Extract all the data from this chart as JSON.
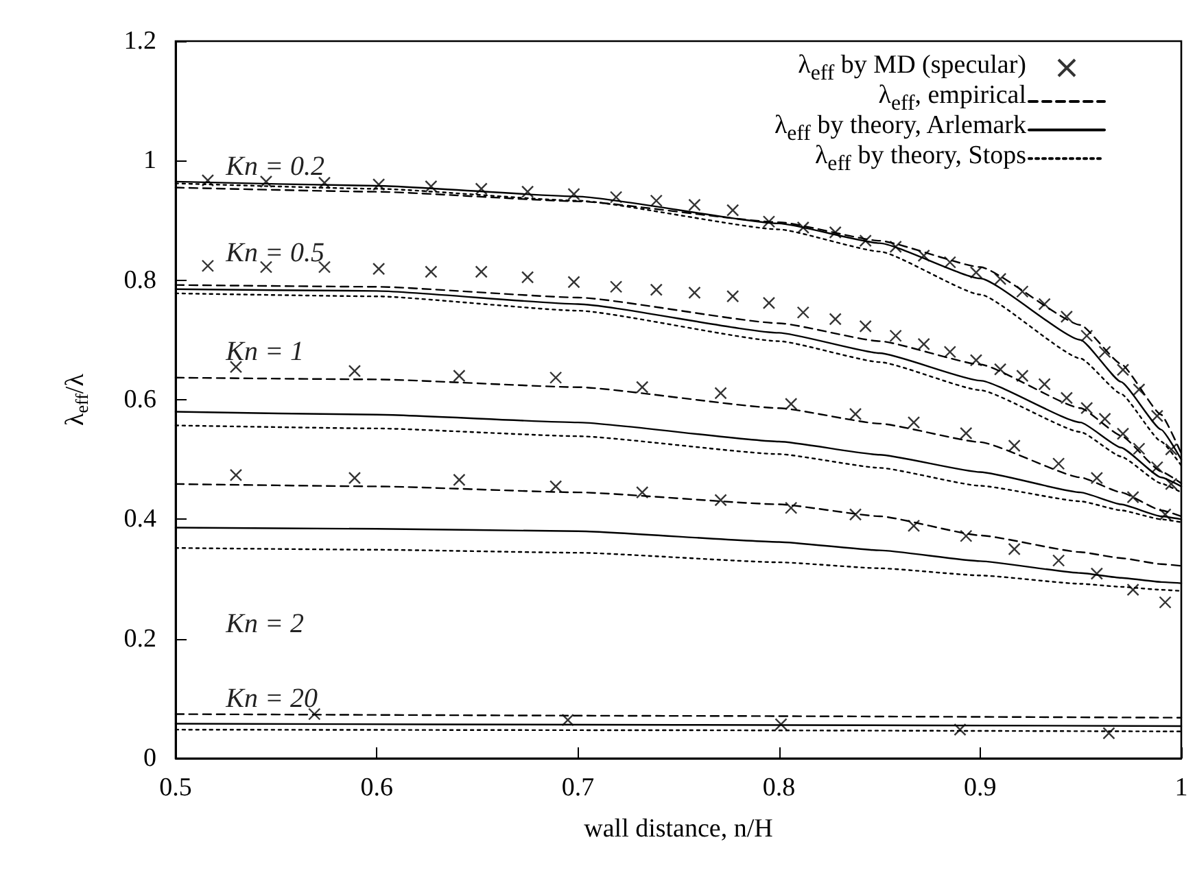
{
  "chart_data": {
    "type": "line",
    "xlabel": "wall distance, n/H",
    "ylabel": "λ$_{eff}$/λ",
    "xlim": [
      0.5,
      1
    ],
    "xticks": [
      0.5,
      0.6,
      0.7,
      0.8,
      0.9,
      1
    ],
    "ylim": [
      0,
      1.2
    ],
    "yticks": [
      0,
      0.2,
      0.4,
      0.6,
      0.8,
      1,
      1.2
    ],
    "grid": false,
    "legend": "top right",
    "annotations": [
      "Kn = 0.2",
      "Kn = 0.5",
      "Kn = 1",
      "Kn = 2",
      "Kn = 20"
    ],
    "series": [
      {
        "name": "λ$_{eff}$ by MD (specular)",
        "type": "scatter",
        "marker": "cross",
        "color": "#000000",
        "x": [
          0.516,
          0.545,
          0.574,
          0.601,
          0.627,
          0.652,
          0.675,
          0.698,
          0.719,
          0.739,
          0.758,
          0.777,
          0.795,
          0.812,
          0.828,
          0.843,
          0.858,
          0.872,
          0.885,
          0.898,
          0.91,
          0.921,
          0.932,
          0.943,
          0.953,
          0.962,
          0.971,
          0.979,
          0.988,
          0.995
        ],
        "values": [
          0.967,
          0.965,
          0.963,
          0.96,
          0.957,
          0.953,
          0.948,
          0.944,
          0.939,
          0.933,
          0.926,
          0.917,
          0.898,
          0.888,
          0.88,
          0.866,
          0.856,
          0.841,
          0.83,
          0.813,
          0.802,
          0.781,
          0.76,
          0.739,
          0.707,
          0.68,
          0.65,
          0.617,
          0.573,
          0.517
        ]
      },
      {
        "type": "scatter",
        "marker": "cross",
        "color": "#000000",
        "x": [
          0.516,
          0.545,
          0.574,
          0.601,
          0.627,
          0.652,
          0.675,
          0.698,
          0.719,
          0.739,
          0.758,
          0.777,
          0.795,
          0.812,
          0.828,
          0.843,
          0.858,
          0.872,
          0.885,
          0.898,
          0.91,
          0.921,
          0.932,
          0.943,
          0.953,
          0.962,
          0.971,
          0.979,
          0.988,
          0.995
        ],
        "values": [
          0.824,
          0.822,
          0.822,
          0.819,
          0.814,
          0.814,
          0.805,
          0.797,
          0.789,
          0.784,
          0.779,
          0.773,
          0.762,
          0.746,
          0.735,
          0.723,
          0.707,
          0.693,
          0.68,
          0.666,
          0.651,
          0.64,
          0.626,
          0.603,
          0.586,
          0.568,
          0.543,
          0.518,
          0.487,
          0.459
        ]
      },
      {
        "type": "scatter",
        "marker": "cross",
        "color": "#000000",
        "x": [
          0.53,
          0.589,
          0.641,
          0.689,
          0.732,
          0.771,
          0.806,
          0.838,
          0.867,
          0.893,
          0.917,
          0.939,
          0.958,
          0.976,
          0.992
        ],
        "values": [
          0.655,
          0.648,
          0.64,
          0.637,
          0.621,
          0.611,
          0.593,
          0.576,
          0.562,
          0.544,
          0.523,
          0.493,
          0.469,
          0.437,
          0.408
        ]
      },
      {
        "type": "scatter",
        "marker": "cross",
        "color": "#000000",
        "x": [
          0.53,
          0.589,
          0.641,
          0.689,
          0.732,
          0.771,
          0.806,
          0.838,
          0.867,
          0.893,
          0.917,
          0.939,
          0.958,
          0.976,
          0.992
        ],
        "values": [
          0.474,
          0.469,
          0.466,
          0.455,
          0.445,
          0.432,
          0.419,
          0.408,
          0.389,
          0.372,
          0.35,
          0.331,
          0.309,
          0.282,
          0.261
        ]
      },
      {
        "type": "scatter",
        "marker": "cross",
        "color": "#000000",
        "x": [
          0.569,
          0.695,
          0.801,
          0.89,
          0.964
        ],
        "values": [
          0.074,
          0.064,
          0.057,
          0.048,
          0.042
        ]
      },
      {
        "name": "λ$_{eff}$, empirical",
        "line_style": "dashed",
        "color": "#000000",
        "x": [
          0.5,
          0.6,
          0.7,
          0.8,
          0.85,
          0.9,
          0.95,
          0.97,
          0.99,
          1
        ],
        "values": [
          0.955,
          0.948,
          0.932,
          0.897,
          0.866,
          0.822,
          0.725,
          0.66,
          0.575,
          0.51
        ]
      },
      {
        "line_style": "dashed",
        "color": "#000000",
        "x": [
          0.5,
          0.6,
          0.7,
          0.8,
          0.85,
          0.9,
          0.95,
          0.97,
          0.99,
          1
        ],
        "values": [
          0.792,
          0.789,
          0.771,
          0.728,
          0.698,
          0.659,
          0.586,
          0.54,
          0.48,
          0.46
        ]
      },
      {
        "line_style": "dashed",
        "color": "#000000",
        "x": [
          0.5,
          0.6,
          0.7,
          0.8,
          0.85,
          0.9,
          0.95,
          0.97,
          0.99,
          1
        ],
        "values": [
          0.637,
          0.634,
          0.621,
          0.586,
          0.56,
          0.529,
          0.47,
          0.445,
          0.415,
          0.405
        ]
      },
      {
        "line_style": "dashed",
        "color": "#000000",
        "x": [
          0.5,
          0.6,
          0.7,
          0.8,
          0.85,
          0.9,
          0.95,
          0.97,
          0.99,
          1
        ],
        "values": [
          0.459,
          0.455,
          0.445,
          0.425,
          0.405,
          0.373,
          0.345,
          0.335,
          0.325,
          0.322
        ]
      },
      {
        "line_style": "dashed",
        "color": "#000000",
        "x": [
          0.5,
          0.75,
          1
        ],
        "values": [
          0.074,
          0.071,
          0.068
        ]
      },
      {
        "name": "λ$_{eff}$ by theory, Arlemark",
        "line_style": "solid",
        "color": "#000000",
        "x": [
          0.5,
          0.6,
          0.7,
          0.8,
          0.85,
          0.9,
          0.95,
          0.97,
          0.99,
          1
        ],
        "values": [
          0.965,
          0.958,
          0.94,
          0.895,
          0.862,
          0.803,
          0.7,
          0.63,
          0.55,
          0.5
        ]
      },
      {
        "line_style": "solid",
        "color": "#000000",
        "x": [
          0.5,
          0.6,
          0.7,
          0.8,
          0.85,
          0.9,
          0.95,
          0.97,
          0.99,
          1
        ],
        "values": [
          0.785,
          0.782,
          0.76,
          0.712,
          0.678,
          0.632,
          0.562,
          0.52,
          0.47,
          0.455
        ]
      },
      {
        "line_style": "solid",
        "color": "#000000",
        "x": [
          0.5,
          0.6,
          0.7,
          0.8,
          0.85,
          0.9,
          0.95,
          0.97,
          0.99,
          1
        ],
        "values": [
          0.58,
          0.575,
          0.562,
          0.53,
          0.508,
          0.479,
          0.445,
          0.425,
          0.405,
          0.4
        ]
      },
      {
        "line_style": "solid",
        "color": "#000000",
        "x": [
          0.5,
          0.6,
          0.7,
          0.8,
          0.85,
          0.9,
          0.95,
          0.97,
          0.99,
          1
        ],
        "values": [
          0.386,
          0.384,
          0.38,
          0.362,
          0.348,
          0.33,
          0.31,
          0.302,
          0.295,
          0.293
        ]
      },
      {
        "line_style": "solid",
        "color": "#000000",
        "x": [
          0.5,
          0.75,
          1
        ],
        "values": [
          0.058,
          0.056,
          0.054
        ]
      },
      {
        "name": "λ$_{eff}$ by theory, Stops",
        "line_style": "dotted",
        "color": "#000000",
        "x": [
          0.5,
          0.6,
          0.7,
          0.8,
          0.85,
          0.9,
          0.95,
          0.97,
          0.99,
          1
        ],
        "values": [
          0.962,
          0.953,
          0.933,
          0.885,
          0.848,
          0.776,
          0.669,
          0.61,
          0.53,
          0.49
        ]
      },
      {
        "line_style": "dotted",
        "color": "#000000",
        "x": [
          0.5,
          0.6,
          0.7,
          0.8,
          0.85,
          0.9,
          0.95,
          0.97,
          0.99,
          1
        ],
        "values": [
          0.778,
          0.773,
          0.749,
          0.698,
          0.663,
          0.616,
          0.546,
          0.505,
          0.46,
          0.445
        ]
      },
      {
        "line_style": "dotted",
        "color": "#000000",
        "x": [
          0.5,
          0.6,
          0.7,
          0.8,
          0.85,
          0.9,
          0.95,
          0.97,
          0.99,
          1
        ],
        "values": [
          0.557,
          0.552,
          0.539,
          0.509,
          0.486,
          0.456,
          0.43,
          0.415,
          0.4,
          0.395
        ]
      },
      {
        "line_style": "dotted",
        "color": "#000000",
        "x": [
          0.5,
          0.6,
          0.7,
          0.8,
          0.85,
          0.9,
          0.95,
          0.97,
          0.99,
          1
        ],
        "values": [
          0.352,
          0.349,
          0.344,
          0.328,
          0.318,
          0.306,
          0.292,
          0.287,
          0.282,
          0.28
        ]
      },
      {
        "line_style": "dotted",
        "color": "#000000",
        "x": [
          0.5,
          0.75,
          1
        ],
        "values": [
          0.048,
          0.047,
          0.045
        ]
      }
    ]
  }
}
